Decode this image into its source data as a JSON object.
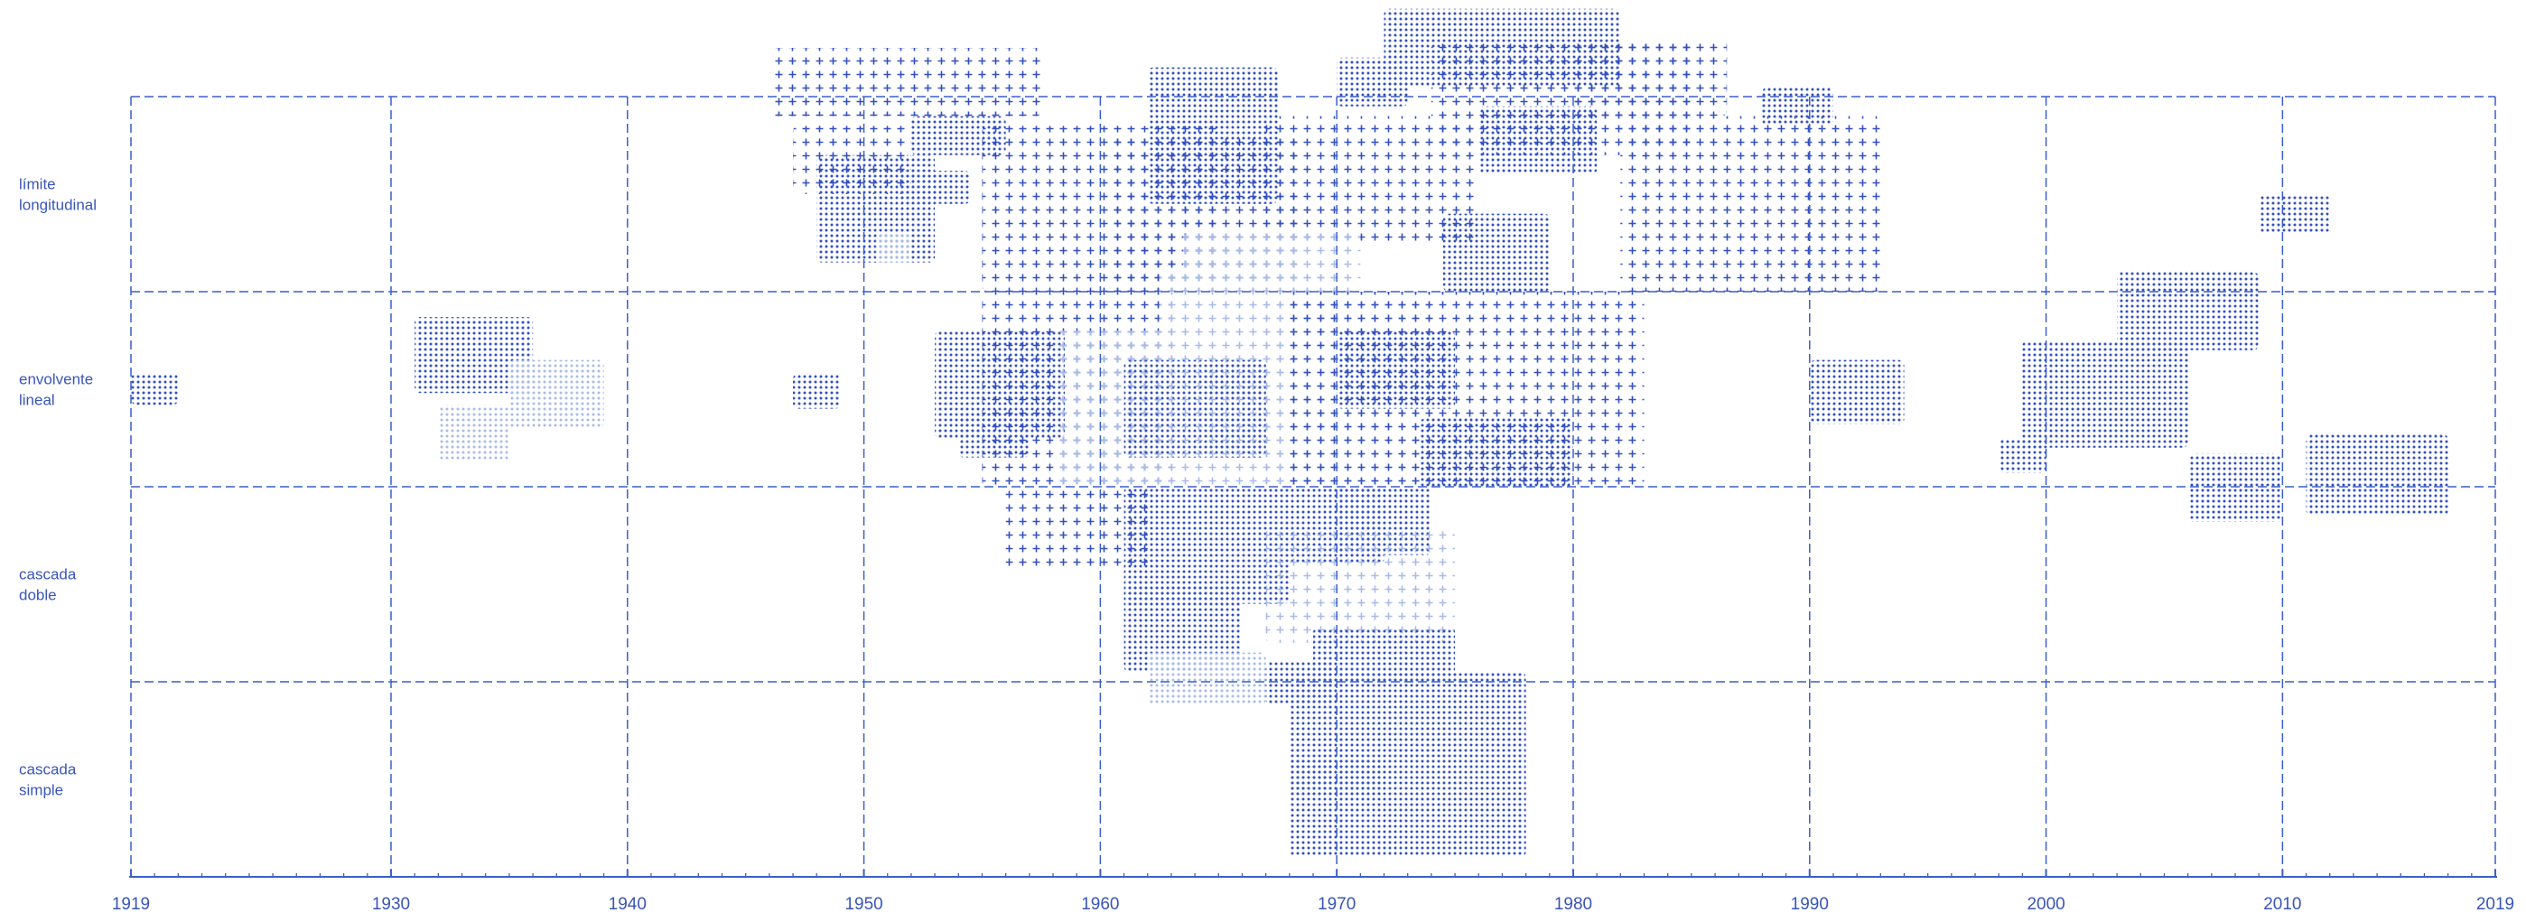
{
  "colors": {
    "accent": "#3a5fcc",
    "pale": "#a9bbe6",
    "text": "#3a55b8"
  },
  "chart_data": {
    "type": "scatter",
    "title": "",
    "xlabel": "",
    "ylabel": "",
    "xlim": [
      1919,
      2019
    ],
    "major_ticks": [
      1919,
      1930,
      1940,
      1950,
      1960,
      1970,
      1980,
      1990,
      2000,
      2010,
      2019
    ],
    "grid": true,
    "rows": [
      {
        "id": "limite",
        "lines": [
          "límite",
          "longitudinal"
        ]
      },
      {
        "id": "envolvente",
        "lines": [
          "envolvente",
          "lineal"
        ]
      },
      {
        "id": "doble",
        "lines": [
          "cascada",
          "doble"
        ]
      },
      {
        "id": "simple",
        "lines": [
          "cascada",
          "simple"
        ]
      }
    ],
    "patches": [
      {
        "x0": 1946.0,
        "x1": 1957.5,
        "row": "limite",
        "r0": -0.25,
        "r1": 0.1,
        "pattern": "cross",
        "shade": "dark"
      },
      {
        "x0": 1952.0,
        "x1": 1956.0,
        "row": "limite",
        "r0": 0.1,
        "r1": 0.3,
        "pattern": "dots",
        "shade": "dark"
      },
      {
        "x0": 1948.0,
        "x1": 1953.0,
        "row": "limite",
        "r0": 0.3,
        "r1": 0.85,
        "pattern": "dots",
        "shade": "dark"
      },
      {
        "x0": 1951.5,
        "x1": 1954.5,
        "row": "limite",
        "r0": 0.38,
        "r1": 0.55,
        "pattern": "dots",
        "shade": "dark"
      },
      {
        "x0": 1950.5,
        "x1": 1952.0,
        "row": "limite",
        "r0": 0.7,
        "r1": 0.85,
        "pattern": "dots",
        "shade": "pale"
      },
      {
        "x0": 1947.0,
        "x1": 1952.0,
        "row": "limite",
        "r0": 0.15,
        "r1": 0.5,
        "pattern": "cross",
        "shade": "dark"
      },
      {
        "x0": 1962.0,
        "x1": 1967.5,
        "row": "limite",
        "r0": -0.15,
        "r1": 0.55,
        "pattern": "dots",
        "shade": "dark"
      },
      {
        "x0": 1967.0,
        "x1": 1976.0,
        "row": "limite",
        "r0": 0.1,
        "r1": 0.75,
        "pattern": "cross",
        "shade": "dark"
      },
      {
        "x0": 1970.0,
        "x1": 1973.0,
        "row": "limite",
        "r0": -0.2,
        "r1": 0.05,
        "pattern": "dots",
        "shade": "dark"
      },
      {
        "x0": 1972.0,
        "x1": 1982.0,
        "row": "limite",
        "r0": -0.45,
        "r1": -0.05,
        "pattern": "dots",
        "shade": "dark"
      },
      {
        "x0": 1974.0,
        "x1": 1985.0,
        "row": "limite",
        "r0": -0.3,
        "r1": 0.3,
        "pattern": "cross",
        "shade": "dark"
      },
      {
        "x0": 1976.0,
        "x1": 1981.0,
        "row": "limite",
        "r0": 0.05,
        "r1": 0.4,
        "pattern": "dots",
        "shade": "dark"
      },
      {
        "x0": 1980.0,
        "x1": 1986.5,
        "row": "limite",
        "r0": -0.3,
        "r1": 0.1,
        "pattern": "cross",
        "shade": "dark"
      },
      {
        "x0": 1982.0,
        "x1": 1993.0,
        "row": "limite",
        "r0": 0.1,
        "r1": 1.0,
        "pattern": "cross",
        "shade": "dark"
      },
      {
        "x0": 1974.5,
        "x1": 1979.0,
        "row": "limite",
        "r0": 0.6,
        "r1": 1.0,
        "pattern": "dots",
        "shade": "dark"
      },
      {
        "x0": 1988.0,
        "x1": 1991.0,
        "row": "limite",
        "r0": -0.05,
        "r1": 0.15,
        "pattern": "dots",
        "shade": "dark"
      },
      {
        "x0": 2009.0,
        "x1": 2012.0,
        "row": "limite",
        "r0": 0.5,
        "r1": 0.7,
        "pattern": "dots",
        "shade": "dark"
      },
      {
        "x0": 1955.0,
        "x1": 1965.0,
        "row": "limite",
        "r0": 0.15,
        "r1": 1.0,
        "pattern": "cross",
        "shade": "dark"
      },
      {
        "x0": 1960.5,
        "x1": 1968.5,
        "row": "limite",
        "r0": 0.2,
        "r1": 1.0,
        "pattern": "cross",
        "shade": "dark"
      },
      {
        "x0": 1963.5,
        "x1": 1971.0,
        "row": "limite",
        "r0": 0.7,
        "r1": 1.0,
        "pattern": "cross",
        "shade": "pale"
      },
      {
        "x0": 1919.0,
        "x1": 1921.0,
        "row": "envolvente",
        "r0": 0.42,
        "r1": 0.58,
        "pattern": "dots",
        "shade": "dark"
      },
      {
        "x0": 1931.0,
        "x1": 1936.0,
        "row": "envolvente",
        "r0": 0.13,
        "r1": 0.52,
        "pattern": "dots",
        "shade": "dark"
      },
      {
        "x0": 1935.0,
        "x1": 1939.0,
        "row": "envolvente",
        "r0": 0.35,
        "r1": 0.7,
        "pattern": "dots",
        "shade": "pale"
      },
      {
        "x0": 1932.0,
        "x1": 1935.0,
        "row": "envolvente",
        "r0": 0.58,
        "r1": 0.87,
        "pattern": "dots",
        "shade": "pale"
      },
      {
        "x0": 1947.0,
        "x1": 1949.0,
        "row": "envolvente",
        "r0": 0.42,
        "r1": 0.6,
        "pattern": "dots",
        "shade": "dark"
      },
      {
        "x0": 1953.0,
        "x1": 1958.5,
        "row": "envolvente",
        "r0": 0.2,
        "r1": 0.75,
        "pattern": "dots",
        "shade": "dark"
      },
      {
        "x0": 1954.0,
        "x1": 1957.0,
        "row": "envolvente",
        "r0": 0.62,
        "r1": 0.85,
        "pattern": "dots",
        "shade": "dark"
      },
      {
        "x0": 1955.0,
        "x1": 1963.0,
        "row": "envolvente",
        "r0": 0.0,
        "r1": 1.0,
        "pattern": "cross",
        "shade": "dark"
      },
      {
        "x0": 1958.0,
        "x1": 1963.0,
        "row": "envolvente",
        "r0": 0.2,
        "r1": 1.0,
        "pattern": "cross",
        "shade": "pale"
      },
      {
        "x0": 1961.0,
        "x1": 1967.0,
        "row": "envolvente",
        "r0": 0.35,
        "r1": 0.85,
        "pattern": "dots",
        "shade": "dark"
      },
      {
        "x0": 1964.5,
        "x1": 1967.0,
        "row": "envolvente",
        "r0": 0.35,
        "r1": 0.55,
        "pattern": "dots",
        "shade": "dark"
      },
      {
        "x0": 1964.5,
        "x1": 1967.0,
        "row": "envolvente",
        "r0": 0.65,
        "r1": 0.85,
        "pattern": "dots",
        "shade": "dark"
      },
      {
        "x0": 1962.5,
        "x1": 1970.0,
        "row": "envolvente",
        "r0": -0.1,
        "r1": 1.0,
        "pattern": "cross",
        "shade": "pale"
      },
      {
        "x0": 1967.0,
        "x1": 1974.0,
        "row": "envolvente",
        "r0": 0.0,
        "r1": 1.0,
        "pattern": "cross",
        "shade": "pale"
      },
      {
        "x0": 1970.0,
        "x1": 1975.0,
        "row": "envolvente",
        "r0": 0.2,
        "r1": 0.6,
        "pattern": "dots",
        "shade": "dark"
      },
      {
        "x0": 1968.0,
        "x1": 1983.0,
        "row": "envolvente",
        "r0": 0.0,
        "r1": 1.0,
        "pattern": "cross",
        "shade": "dark"
      },
      {
        "x0": 1973.5,
        "x1": 1980.0,
        "row": "envolvente",
        "r0": 0.65,
        "r1": 1.0,
        "pattern": "dots",
        "shade": "dark"
      },
      {
        "x0": 1990.0,
        "x1": 1994.0,
        "row": "envolvente",
        "r0": 0.35,
        "r1": 0.68,
        "pattern": "dots",
        "shade": "dark"
      },
      {
        "x0": 1999.0,
        "x1": 2006.0,
        "row": "envolvente",
        "r0": 0.25,
        "r1": 0.8,
        "pattern": "dots",
        "shade": "dark"
      },
      {
        "x0": 2003.0,
        "x1": 2009.0,
        "row": "envolvente",
        "r0": -0.1,
        "r1": 0.3,
        "pattern": "dots",
        "shade": "dark"
      },
      {
        "x0": 1998.0,
        "x1": 2000.0,
        "row": "envolvente",
        "r0": 0.75,
        "r1": 0.93,
        "pattern": "dots",
        "shade": "dark"
      },
      {
        "x0": 2006.0,
        "x1": 2010.0,
        "row": "envolvente",
        "r0": 0.83,
        "r1": 1.18,
        "pattern": "dots",
        "shade": "dark"
      },
      {
        "x0": 2011.0,
        "x1": 2017.0,
        "row": "envolvente",
        "r0": 0.73,
        "r1": 1.15,
        "pattern": "dots",
        "shade": "dark"
      },
      {
        "x0": 1956.0,
        "x1": 1962.0,
        "row": "doble",
        "r0": 0.0,
        "r1": 0.42,
        "pattern": "cross",
        "shade": "dark"
      },
      {
        "x0": 1961.0,
        "x1": 1968.0,
        "row": "doble",
        "r0": 0.0,
        "r1": 0.6,
        "pattern": "dots",
        "shade": "dark"
      },
      {
        "x0": 1961.0,
        "x1": 1966.0,
        "row": "doble",
        "r0": 0.5,
        "r1": 0.95,
        "pattern": "dots",
        "shade": "dark"
      },
      {
        "x0": 1968.0,
        "x1": 1972.0,
        "row": "doble",
        "r0": 0.0,
        "r1": 0.4,
        "pattern": "dots",
        "shade": "dark"
      },
      {
        "x0": 1970.0,
        "x1": 1974.0,
        "row": "doble",
        "r0": 0.0,
        "r1": 0.35,
        "pattern": "dots",
        "shade": "dark"
      },
      {
        "x0": 1967.0,
        "x1": 1975.0,
        "row": "doble",
        "r0": 0.2,
        "r1": 0.8,
        "pattern": "cross",
        "shade": "pale"
      },
      {
        "x0": 1969.0,
        "x1": 1975.0,
        "row": "doble",
        "r0": 0.72,
        "r1": 1.0,
        "pattern": "dots",
        "shade": "dark"
      },
      {
        "x0": 1962.0,
        "x1": 1967.0,
        "row": "doble",
        "r0": 0.85,
        "r1": 1.12,
        "pattern": "dots",
        "shade": "pale"
      },
      {
        "x0": 1967.0,
        "x1": 1970.0,
        "row": "doble",
        "r0": 0.9,
        "r1": 1.12,
        "pattern": "dots",
        "shade": "dark"
      },
      {
        "x0": 1968.0,
        "x1": 1978.0,
        "row": "simple",
        "r0": -0.05,
        "r1": 0.9,
        "pattern": "dots",
        "shade": "dark"
      },
      {
        "x0": 1968.0,
        "x1": 1972.0,
        "row": "simple",
        "r0": 0.4,
        "r1": 0.58,
        "pattern": "dots",
        "shade": "dark"
      }
    ]
  }
}
